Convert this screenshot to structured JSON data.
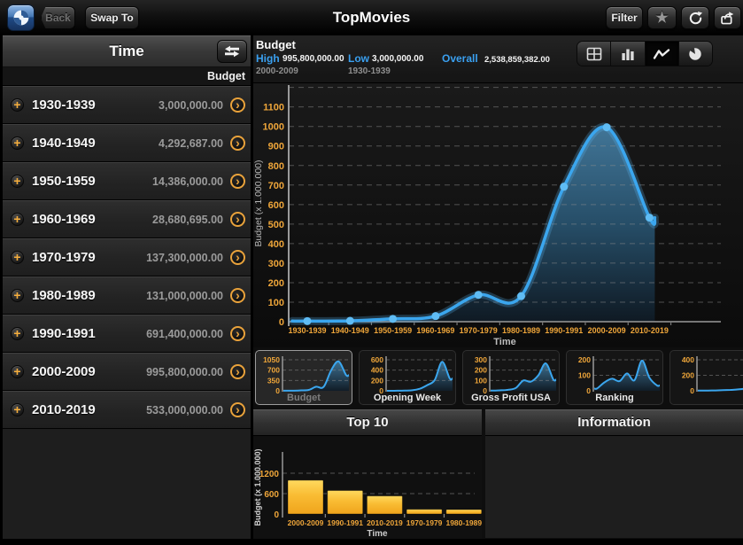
{
  "navbar": {
    "title": "TopMovies",
    "back_label": "Back",
    "swap_to_label": "Swap To",
    "filter_label": "Filter",
    "star_icon": "★"
  },
  "sidebar": {
    "title": "Time",
    "column_header": "Budget",
    "plus_icon": "+",
    "chevron_icon": "›",
    "rows": [
      {
        "label": "1930-1939",
        "value": "3,000,000.00"
      },
      {
        "label": "1940-1949",
        "value": "4,292,687.00"
      },
      {
        "label": "1950-1959",
        "value": "14,386,000.00"
      },
      {
        "label": "1960-1969",
        "value": "28,680,695.00"
      },
      {
        "label": "1970-1979",
        "value": "137,300,000.00"
      },
      {
        "label": "1980-1989",
        "value": "131,000,000.00"
      },
      {
        "label": "1990-1991",
        "value": "691,400,000.00"
      },
      {
        "label": "2000-2009",
        "value": "995,800,000.00"
      },
      {
        "label": "2010-2019",
        "value": "533,000,000.00"
      }
    ]
  },
  "budget_header": {
    "title": "Budget",
    "high_label": "High",
    "high_value": "995,800,000.00",
    "high_sub": "2000-2009",
    "low_label": "Low",
    "low_value": "3,000,000.00",
    "low_sub": "1930-1939",
    "overall_label": "Overall",
    "overall_value": "2,538,859,382.00"
  },
  "bottom_panels": {
    "top10_title": "Top 10",
    "info_title": "Information"
  },
  "colors": {
    "accent_orange": "#EFA63A",
    "accent_blue": "#3AA0F0",
    "line_blue": "#3BA6EE",
    "dot_blue": "#5FBCF4",
    "bar_yellow_top": "#FFD95E",
    "bar_yellow_bottom": "#EFA41C",
    "grid_gray": "#8f8f8f",
    "axis_gray": "#9a9a9a"
  },
  "chart_data": [
    {
      "id": "budget-main",
      "type": "area",
      "title": "Budget",
      "categories": [
        "1930-1939",
        "1940-1949",
        "1950-1959",
        "1960-1969",
        "1970-1979",
        "1980-1989",
        "1990-1991",
        "2000-2009",
        "2010-2019"
      ],
      "values": [
        3,
        4.292687,
        14.386,
        28.680695,
        137.3,
        131,
        691.4,
        995.8,
        533
      ],
      "xlabel": "Time",
      "ylabel": "Budget (x 1.000.000)",
      "yticks": [
        0,
        100,
        200,
        300,
        400,
        500,
        600,
        700,
        800,
        900,
        1000,
        1100
      ],
      "ylim": [
        0,
        1212
      ],
      "grid": "dashed"
    },
    {
      "id": "thumb-budget",
      "type": "area-thumb",
      "name": "Budget",
      "selected": true,
      "yticks": [
        1050,
        700,
        350,
        0
      ],
      "values": [
        3,
        4.292687,
        14.386,
        28.680695,
        137.3,
        131,
        691.4,
        995.8,
        533
      ]
    },
    {
      "id": "thumb-opening-week",
      "type": "area-thumb",
      "name": "Opening Week",
      "selected": false,
      "yticks": [
        600,
        400,
        200,
        0
      ],
      "values": [
        0.5,
        1,
        3,
        10,
        40,
        110,
        210,
        560,
        240
      ]
    },
    {
      "id": "thumb-gross-profit-usa",
      "type": "area-thumb",
      "name": "Gross Profit USA",
      "selected": false,
      "yticks": [
        300,
        200,
        100,
        0
      ],
      "values": [
        2,
        5,
        10,
        28,
        100,
        88,
        150,
        265,
        110
      ]
    },
    {
      "id": "thumb-ranking",
      "type": "area-thumb",
      "name": "Ranking",
      "selected": false,
      "yticks": [
        200,
        100,
        0
      ],
      "values": [
        15,
        55,
        78,
        62,
        112,
        68,
        195,
        85,
        35
      ]
    },
    {
      "id": "thumb-partial",
      "type": "area-thumb",
      "name": "",
      "selected": false,
      "yticks": [
        400,
        200,
        0
      ],
      "values": [
        2,
        3,
        5,
        8,
        12,
        18,
        28,
        45,
        60
      ]
    },
    {
      "id": "top10",
      "type": "bar",
      "title": "Top 10",
      "categories": [
        "2000-2009",
        "1990-1991",
        "2010-2019",
        "1970-1979",
        "1980-1989"
      ],
      "values": [
        995.8,
        691.4,
        533,
        137.3,
        131
      ],
      "yticks": [
        1200,
        600,
        0
      ],
      "xlabel": "Time",
      "ylabel": "Budget (x 1.000.000)"
    }
  ]
}
